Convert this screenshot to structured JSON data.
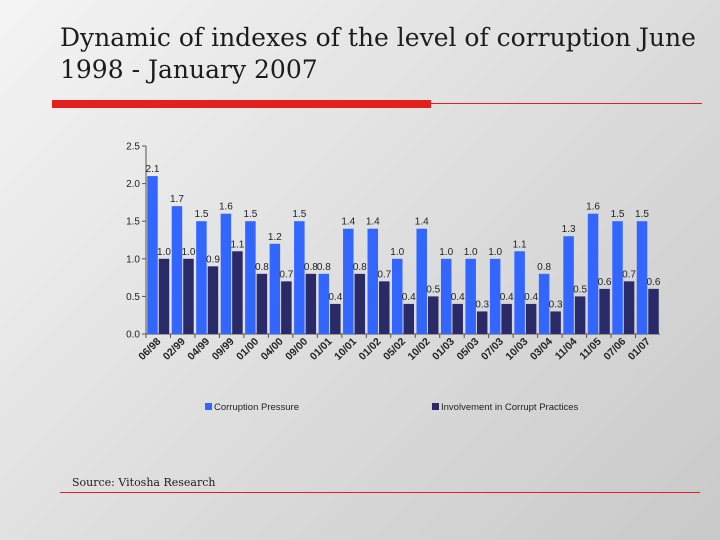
{
  "slide": {
    "title": "Dynamic of indexes of the level of corruption June 1998 - January 2007",
    "source": "Source: Vitosha Research"
  },
  "colors": {
    "accent_red": "#e3201b",
    "series_1": "#3366ff",
    "series_2": "#2a2a66"
  },
  "chart_data": {
    "type": "bar",
    "categories": [
      "06/98",
      "02/99",
      "04/99",
      "09/99",
      "01/00",
      "04/00",
      "09/00",
      "01/01",
      "10/01",
      "01/02",
      "05/02",
      "10/02",
      "01/03",
      "05/03",
      "07/03",
      "10/03",
      "03/04",
      "11/04",
      "11/05",
      "07/06",
      "01/07"
    ],
    "series": [
      {
        "name": "Corruption Pressure",
        "values": [
          2.1,
          1.7,
          1.5,
          1.6,
          1.5,
          1.2,
          1.5,
          0.8,
          1.4,
          1.4,
          1.0,
          1.4,
          1.0,
          1.0,
          1.0,
          1.1,
          0.8,
          1.3,
          1.6,
          1.5,
          1.5
        ],
        "labels": [
          "2.1",
          "1.7",
          "1.5",
          "1.6",
          "1.5",
          "1.2",
          "1.5",
          "0.8",
          "1.4",
          "1.4",
          "1.0",
          "1.4",
          "1.0",
          "1.0",
          "1.0",
          "1.1",
          "0.8",
          "1.3",
          "1.6",
          "1.5",
          "1.5"
        ]
      },
      {
        "name": "Involvement in Corrupt Practices",
        "values": [
          1.0,
          1.0,
          0.9,
          1.1,
          0.8,
          0.7,
          0.8,
          0.4,
          0.8,
          0.7,
          0.4,
          0.5,
          0.4,
          0.3,
          0.4,
          0.4,
          0.3,
          0.5,
          0.6,
          0.7,
          0.6
        ],
        "labels": [
          "1.0",
          "1.0",
          "0.9",
          "1.1",
          "0.8",
          "0.7",
          "0.8",
          "0.4",
          "0.8",
          "0.7",
          "0.4",
          "0.5",
          "0.4",
          "0.3",
          "0.4",
          "0.4",
          "0.3",
          "0.5",
          "0.6",
          "0.7",
          "0.6"
        ]
      }
    ],
    "yticks": [
      "0.0",
      "0.5",
      "1.0",
      "1.5",
      "2.0",
      "2.5"
    ],
    "ylim": [
      0,
      2.5
    ],
    "legend_position": "bottom",
    "grid": false
  }
}
